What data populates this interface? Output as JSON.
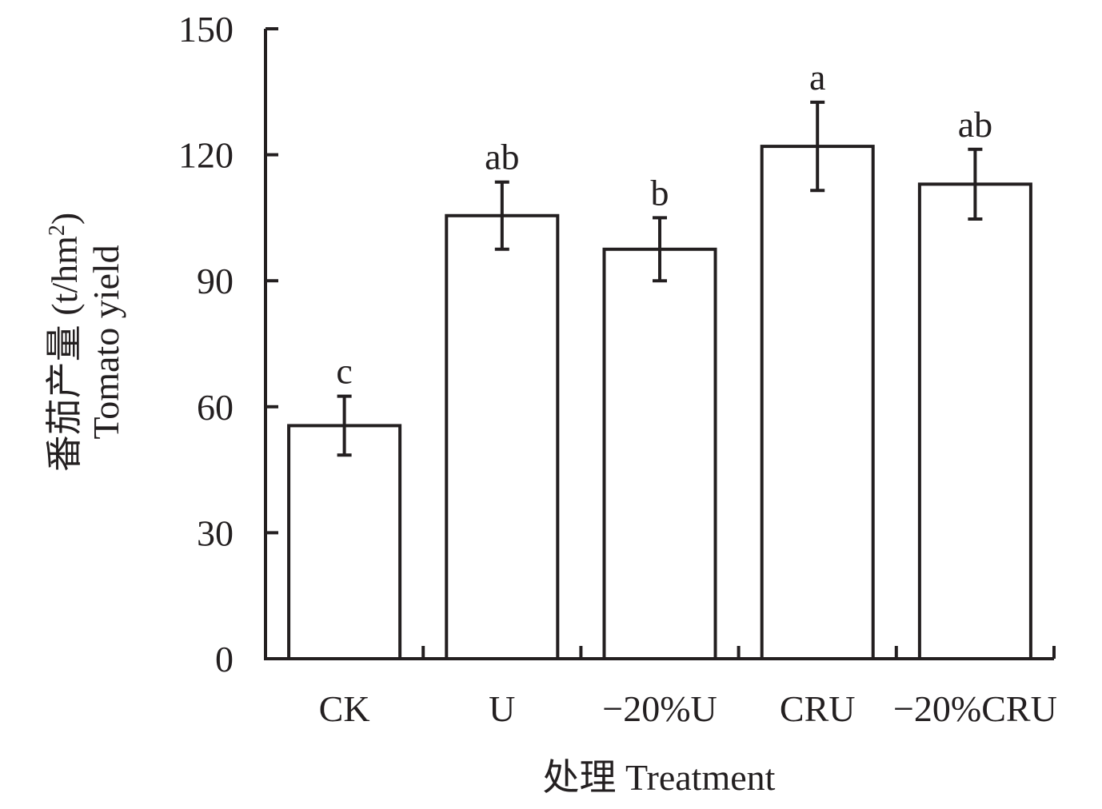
{
  "chart_data": {
    "type": "bar",
    "categories": [
      "CK",
      "U",
      "−20%U",
      "CRU",
      "−20%CRU"
    ],
    "values": [
      55.5,
      105.5,
      97.5,
      122,
      113
    ],
    "errors": [
      7,
      8,
      7.5,
      10.5,
      8.3
    ],
    "significance_labels": [
      "c",
      "ab",
      "b",
      "a",
      "ab"
    ],
    "ylim": [
      0,
      150
    ],
    "yticks": [
      0,
      30,
      60,
      90,
      120,
      150
    ],
    "xlabel": "处理 Treatment",
    "ylabel_cn": "番茄产量 (t/hm",
    "ylabel_sup": "2",
    "ylabel_close": ")",
    "ylabel_en": "Tomato yield",
    "grid": false,
    "bar_fill": "#ffffff",
    "stroke_color": "#231f20"
  }
}
